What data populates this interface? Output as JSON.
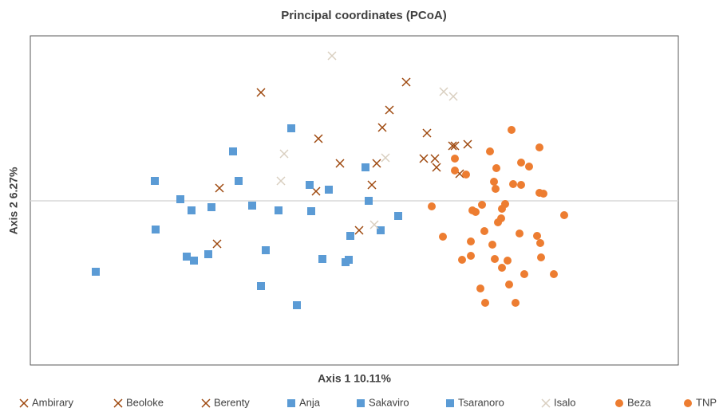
{
  "chart_data": {
    "type": "scatter",
    "title": "Principal coordinates (PCoA)",
    "x_label": "Axis 1 10.11%",
    "y_label": "Axis 2 6.27%",
    "xlim": [
      -4.06,
      4.06
    ],
    "ylim": [
      -2.06,
      2.07
    ],
    "zero_line": true,
    "series": [
      {
        "name": "Ambirary",
        "color": "#9e480e",
        "marker": "x",
        "x": [
          -1.17,
          0.65,
          0.44,
          0.35,
          -0.45,
          0.91,
          1.23
        ],
        "values": [
          1.36,
          1.49,
          1.14,
          0.92,
          0.78,
          0.85,
          0.69
        ]
      },
      {
        "name": "Beoloke",
        "color": "#9e480e",
        "marker": "x",
        "x": [
          1.42,
          -0.18,
          0.28,
          0.87,
          1.01,
          1.03,
          1.32
        ],
        "values": [
          0.71,
          0.47,
          0.47,
          0.53,
          0.53,
          0.42,
          0.34
        ]
      },
      {
        "name": "Berenty",
        "color": "#9e480e",
        "marker": "x",
        "x": [
          -1.69,
          -0.48,
          0.22,
          0.06,
          -1.72,
          1.26
        ],
        "values": [
          0.16,
          0.12,
          0.2,
          -0.37,
          -0.54,
          0.69
        ]
      },
      {
        "name": "Anja",
        "color": "#5b9bd5",
        "marker": "square",
        "x": [
          -0.79,
          -1.52,
          -2.5,
          -1.45,
          -0.56,
          -0.32,
          0.14,
          -2.18,
          -2.04,
          -1.79
        ],
        "values": [
          0.91,
          0.62,
          0.25,
          0.25,
          0.2,
          0.14,
          0.42,
          0.02,
          -0.12,
          -0.08
        ]
      },
      {
        "name": "Sakaviro",
        "color": "#5b9bd5",
        "marker": "square",
        "x": [
          -1.28,
          -0.95,
          -0.54,
          0.18,
          0.55,
          -2.49,
          -0.05,
          0.33,
          -1.11
        ],
        "values": [
          -0.06,
          -0.12,
          -0.13,
          0.0,
          -0.19,
          -0.36,
          -0.44,
          -0.37,
          -0.62
        ]
      },
      {
        "name": "Tsaranoro",
        "color": "#5b9bd5",
        "marker": "square",
        "x": [
          -2.1,
          -2.01,
          -1.83,
          -0.4,
          -0.07,
          -0.11,
          -3.24,
          -1.17,
          -0.72
        ],
        "values": [
          -0.7,
          -0.75,
          -0.67,
          -0.73,
          -0.74,
          -0.77,
          -0.89,
          -1.07,
          -1.31
        ]
      },
      {
        "name": "Isalo",
        "color": "#d9cfc0",
        "marker": "x",
        "x": [
          -0.28,
          1.12,
          1.24,
          -0.88,
          -0.92,
          0.39,
          0.25
        ],
        "values": [
          1.82,
          1.37,
          1.31,
          0.59,
          0.25,
          0.54,
          -0.3
        ]
      },
      {
        "name": "Beza",
        "color": "#ed7d31",
        "marker": "circle",
        "x": [
          1.97,
          2.32,
          1.7,
          1.26,
          2.09,
          2.19,
          1.4,
          1.26,
          1.78,
          1.99,
          1.75,
          1.77,
          2.09,
          2.32,
          2.37,
          1.6,
          1.89,
          0.97,
          1.48,
          1.52,
          1.85,
          2.63
        ],
        "values": [
          0.89,
          0.67,
          0.62,
          0.53,
          0.48,
          0.43,
          0.33,
          0.38,
          0.41,
          0.21,
          0.24,
          0.15,
          0.2,
          0.1,
          0.09,
          -0.05,
          -0.04,
          -0.07,
          -0.12,
          -0.14,
          -0.1,
          -0.18
        ]
      },
      {
        "name": "TNP",
        "color": "#ed7d31",
        "marker": "circle",
        "x": [
          1.84,
          1.8,
          1.11,
          1.63,
          2.07,
          2.29,
          1.46,
          1.73,
          2.33,
          1.46,
          1.35,
          1.76,
          1.92,
          2.34,
          1.85,
          2.13,
          2.5,
          1.94,
          1.58,
          1.64,
          2.02
        ],
        "values": [
          -0.22,
          -0.27,
          -0.45,
          -0.38,
          -0.41,
          -0.44,
          -0.51,
          -0.55,
          -0.53,
          -0.69,
          -0.74,
          -0.73,
          -0.75,
          -0.71,
          -0.84,
          -0.92,
          -0.92,
          -1.05,
          -1.1,
          -1.28,
          -1.28
        ]
      }
    ]
  }
}
